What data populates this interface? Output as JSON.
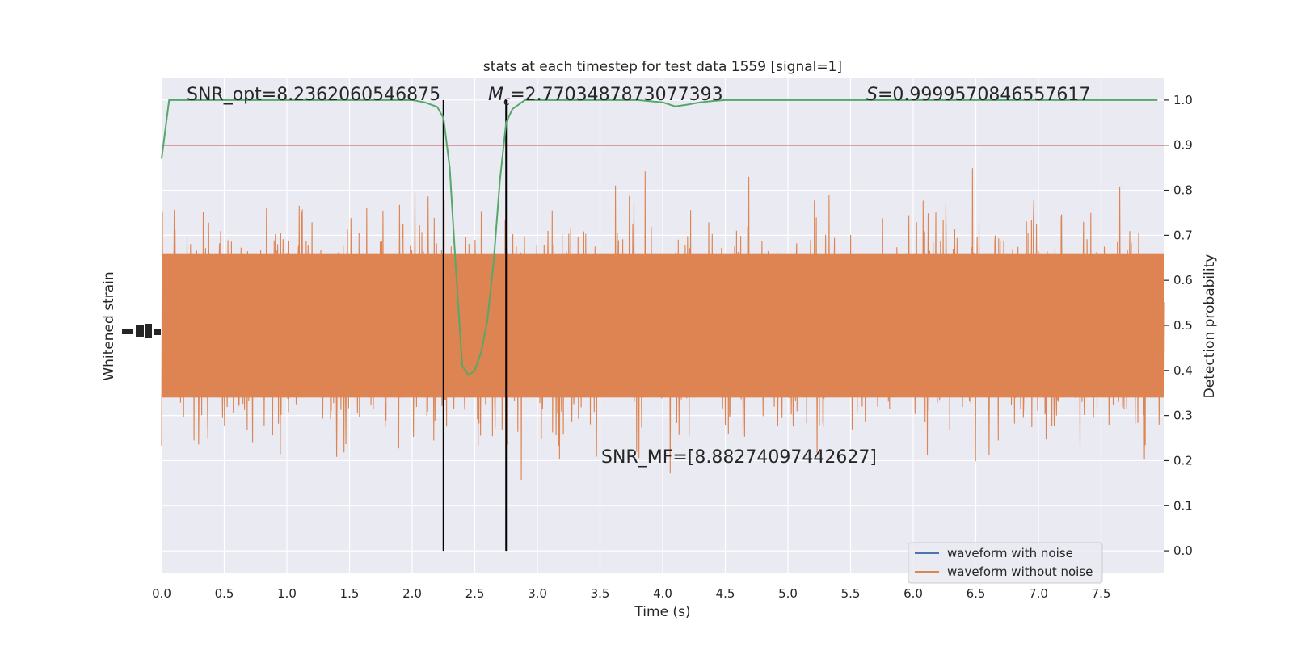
{
  "chart_data": {
    "type": "line",
    "title": "stats at each timestep for test data 1559 [signal=1]",
    "xlabel": "Time (s)",
    "ylabel_left": "Whitened strain",
    "ylabel_right": "Detection probability",
    "xlim": [
      0.0,
      8.0
    ],
    "ylim_right": [
      -0.05,
      1.05
    ],
    "x_ticks": [
      "0.0",
      "0.5",
      "1.0",
      "1.5",
      "2.0",
      "2.5",
      "3.0",
      "3.5",
      "4.0",
      "4.5",
      "5.0",
      "5.5",
      "6.0",
      "6.5",
      "7.0",
      "7.5"
    ],
    "y_ticks_right": [
      "0.0",
      "0.1",
      "0.2",
      "0.3",
      "0.4",
      "0.5",
      "0.6",
      "0.7",
      "0.8",
      "0.9",
      "1.0"
    ],
    "grid": true,
    "legend_position": "lower-right",
    "series": [
      {
        "name": "waveform with noise",
        "color": "#4c72b0",
        "values": []
      },
      {
        "name": "waveform without noise",
        "color": "#dd8452",
        "values": []
      },
      {
        "name": "",
        "color": "#55a868",
        "x": [
          0.0,
          0.06,
          0.15,
          0.5,
          1.0,
          1.5,
          1.8,
          2.0,
          2.1,
          2.2,
          2.25,
          2.3,
          2.35,
          2.4,
          2.45,
          2.5,
          2.55,
          2.6,
          2.65,
          2.7,
          2.75,
          2.8,
          2.85,
          2.9,
          3.0,
          3.5,
          3.8,
          4.0,
          4.1,
          4.2,
          4.3,
          4.4,
          4.5,
          4.6,
          4.7,
          5.0,
          5.5,
          6.0,
          6.5,
          7.0,
          7.5,
          7.95
        ],
        "values": [
          0.87,
          1.0,
          1.0,
          1.0,
          1.0,
          1.0,
          1.0,
          1.0,
          0.995,
          0.985,
          0.96,
          0.85,
          0.62,
          0.41,
          0.39,
          0.4,
          0.44,
          0.51,
          0.64,
          0.82,
          0.95,
          0.98,
          0.99,
          1.0,
          1.0,
          1.0,
          1.0,
          0.995,
          0.986,
          0.99,
          0.995,
          0.998,
          1.0,
          1.0,
          1.0,
          1.0,
          1.0,
          1.0,
          1.0,
          1.0,
          1.0,
          1.0
        ]
      }
    ],
    "threshold": {
      "value": 0.9,
      "color": "#c44e52"
    },
    "vlines": [
      2.25,
      2.75
    ],
    "vline_color": "#000000",
    "annotations": {
      "snr_opt": "SNR_opt=8.2362060546875",
      "mc_symbol": "M",
      "mc_sub": "c",
      "mc_value": "=2.7703487873077393",
      "s_symbol": "S",
      "s_value": "=0.9999570846557617",
      "snr_mf": "SNR_MF=[8.88274097442627]"
    }
  }
}
